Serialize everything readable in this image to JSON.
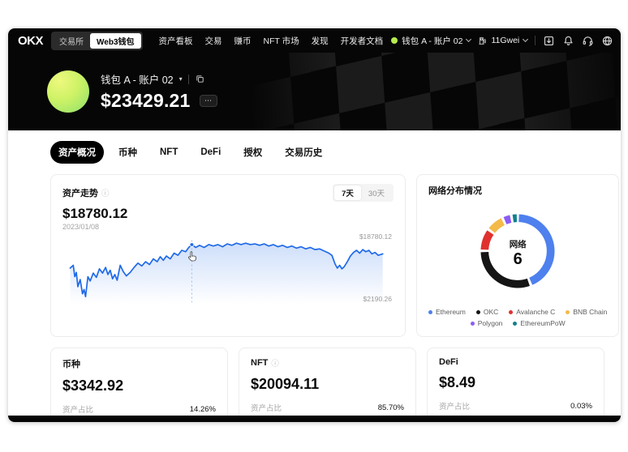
{
  "icons": {
    "chevron_right": "›",
    "info": "ⓘ",
    "caret_down": "▾",
    "dots_more": "⋯"
  },
  "nav": {
    "logo": "OKX",
    "toggle": [
      {
        "label": "交易所",
        "active": false
      },
      {
        "label": "Web3钱包",
        "active": true
      }
    ],
    "menu": [
      "资产看板",
      "交易",
      "赚币",
      "NFT 市场",
      "发现",
      "开发者文档"
    ],
    "account_label": "钱包 A - 账户 02",
    "gas_label": "11Gwei"
  },
  "hero": {
    "wallet_label": "钱包 A - 账户 02",
    "balance": "$23429.21"
  },
  "tabs": [
    {
      "label": "资产概况",
      "active": true
    },
    {
      "label": "币种",
      "active": false
    },
    {
      "label": "NFT",
      "active": false
    },
    {
      "label": "DeFi",
      "active": false
    },
    {
      "label": "授权",
      "active": false
    },
    {
      "label": "交易历史",
      "active": false
    }
  ],
  "chart_data": [
    {
      "type": "line",
      "title": "资产走势",
      "current_value": 18780.12,
      "current_value_label": "$18780.12",
      "date": "2023/01/08",
      "range_options": [
        "7天",
        "30天"
      ],
      "selected_range": "7天",
      "y_max_label": "$18780.12",
      "y_min_label": "$2190.26",
      "y_range": [
        2190.26,
        18780.12
      ],
      "line_color": "#1f6ae8",
      "cursor_x": 168,
      "points": [
        [
          10,
          50
        ],
        [
          14,
          46
        ],
        [
          16,
          62
        ],
        [
          18,
          56
        ],
        [
          20,
          76
        ],
        [
          23,
          66
        ],
        [
          26,
          86
        ],
        [
          28,
          80
        ],
        [
          30,
          90
        ],
        [
          33,
          62
        ],
        [
          36,
          68
        ],
        [
          40,
          57
        ],
        [
          44,
          63
        ],
        [
          48,
          51
        ],
        [
          52,
          57
        ],
        [
          56,
          49
        ],
        [
          59,
          59
        ],
        [
          62,
          53
        ],
        [
          65,
          65
        ],
        [
          68,
          59
        ],
        [
          71,
          67
        ],
        [
          75,
          46
        ],
        [
          79,
          55
        ],
        [
          83,
          61
        ],
        [
          88,
          56
        ],
        [
          93,
          49
        ],
        [
          98,
          43
        ],
        [
          103,
          47
        ],
        [
          108,
          41
        ],
        [
          113,
          45
        ],
        [
          118,
          37
        ],
        [
          123,
          41
        ],
        [
          127,
          34
        ],
        [
          131,
          39
        ],
        [
          135,
          33
        ],
        [
          140,
          37
        ],
        [
          145,
          29
        ],
        [
          150,
          32
        ],
        [
          155,
          25
        ],
        [
          160,
          27
        ],
        [
          164,
          21
        ],
        [
          168,
          17
        ],
        [
          173,
          21
        ],
        [
          178,
          18
        ],
        [
          184,
          21
        ],
        [
          190,
          17
        ],
        [
          196,
          19
        ],
        [
          202,
          17
        ],
        [
          208,
          20
        ],
        [
          214,
          16
        ],
        [
          220,
          18
        ],
        [
          226,
          15
        ],
        [
          232,
          17
        ],
        [
          238,
          15
        ],
        [
          244,
          17
        ],
        [
          250,
          16
        ],
        [
          256,
          18
        ],
        [
          262,
          16
        ],
        [
          268,
          19
        ],
        [
          274,
          17
        ],
        [
          280,
          20
        ],
        [
          286,
          18
        ],
        [
          292,
          21
        ],
        [
          298,
          19
        ],
        [
          304,
          22
        ],
        [
          310,
          20
        ],
        [
          316,
          23
        ],
        [
          322,
          21
        ],
        [
          328,
          24
        ],
        [
          334,
          23
        ],
        [
          340,
          26
        ],
        [
          346,
          29
        ],
        [
          350,
          32
        ],
        [
          354,
          44
        ],
        [
          357,
          50
        ],
        [
          360,
          46
        ],
        [
          363,
          51
        ],
        [
          366,
          48
        ],
        [
          370,
          41
        ],
        [
          374,
          33
        ],
        [
          378,
          28
        ],
        [
          382,
          25
        ],
        [
          386,
          29
        ],
        [
          390,
          24
        ],
        [
          394,
          27
        ],
        [
          398,
          25
        ],
        [
          402,
          30
        ],
        [
          406,
          28
        ],
        [
          410,
          32
        ],
        [
          416,
          30
        ]
      ]
    },
    {
      "type": "donut",
      "title": "网络分布情况",
      "center_label": "网络",
      "center_value": "6",
      "segments": [
        {
          "name": "Ethereum",
          "color": "#4E80EE",
          "pct": 44
        },
        {
          "name": "OKC",
          "color": "#151515",
          "pct": 31
        },
        {
          "name": "Avalanche C",
          "color": "#E0312E",
          "pct": 10
        },
        {
          "name": "BNB Chain",
          "color": "#F3BA4A",
          "pct": 8
        },
        {
          "name": "Polygon",
          "color": "#8B5CF6",
          "pct": 4
        },
        {
          "name": "EthereumPoW",
          "color": "#12808C",
          "pct": 3
        }
      ],
      "legend_split": 4
    }
  ],
  "summary_cards": [
    {
      "title": "币种",
      "has_info": false,
      "value": "$3342.92",
      "ratio_label": "资产占比",
      "percent_label": "14.26%",
      "percent_value": 14.26,
      "bar_color": "#F0801F",
      "chips": [
        {
          "name": "eth-coin-icon",
          "shape": "circle",
          "bg": "#f4f5f7",
          "fg": "#474c56",
          "glyph": "◆"
        },
        {
          "name": "usdc-coin-icon",
          "shape": "circle",
          "bg": "#2775CA",
          "fg": "#ffffff",
          "glyph": "$"
        },
        {
          "name": "avax-coin-icon",
          "shape": "circle",
          "bg": "#E2383A",
          "fg": "#ffffff",
          "glyph": "▲"
        },
        {
          "name": "navy-coin-icon",
          "shape": "circle",
          "bg": "#223a73",
          "fg": "#ffffff",
          "glyph": "◈"
        },
        {
          "name": "gray-coin-icon",
          "shape": "circle",
          "bg": "#4b5563",
          "fg": "#ffffff",
          "glyph": "◇"
        },
        {
          "name": "polygon-coin-icon",
          "shape": "circle",
          "bg": "#8247E5",
          "fg": "#ffffff",
          "glyph": "∞"
        }
      ]
    },
    {
      "title": "NFT",
      "has_info": true,
      "value": "$20094.11",
      "ratio_label": "资产占比",
      "percent_label": "85.70%",
      "percent_value": 85.7,
      "bar_color": "#155EEF",
      "chips": [
        {
          "name": "nft-thumbnail",
          "shape": "square",
          "bg": "#b5895a",
          "fg": "#7a5330",
          "glyph": ""
        },
        {
          "name": "nft-thumbnail",
          "shape": "square",
          "bg": "#5b4ee0",
          "fg": "#3b2fa8",
          "glyph": ""
        },
        {
          "name": "nft-thumbnail",
          "shape": "square",
          "bg": "#1c2030",
          "fg": "#caa85a",
          "glyph": ""
        },
        {
          "name": "nft-thumbnail",
          "shape": "square",
          "bg": "#8f969e",
          "fg": "#3c4048",
          "glyph": ""
        },
        {
          "name": "nft-thumbnail",
          "shape": "square",
          "bg": "#bfe7ea",
          "fg": "#25303c",
          "glyph": ""
        },
        {
          "name": "nft-thumbnail",
          "shape": "square",
          "bg": "#f29ab0",
          "fg": "#8a3c52",
          "glyph": ""
        }
      ]
    },
    {
      "title": "DeFi",
      "has_info": false,
      "value": "$8.49",
      "ratio_label": "资产占比",
      "percent_label": "0.03%",
      "percent_value": 0.03,
      "bar_color": "#09A96C",
      "chips": [
        {
          "name": "defi-protocol-icon",
          "shape": "circle",
          "bg": "#7B3FE4",
          "fg": "#ffffff",
          "glyph": "P"
        },
        {
          "name": "defi-protocol-icon",
          "shape": "circle",
          "bg": "#ffffff",
          "fg": "#ff4d94",
          "glyph": "◉"
        },
        {
          "name": "defi-protocol-icon",
          "shape": "circle",
          "bg": "#0b0b0b",
          "fg": "#ff5ca8",
          "glyph": "✱"
        }
      ]
    }
  ]
}
